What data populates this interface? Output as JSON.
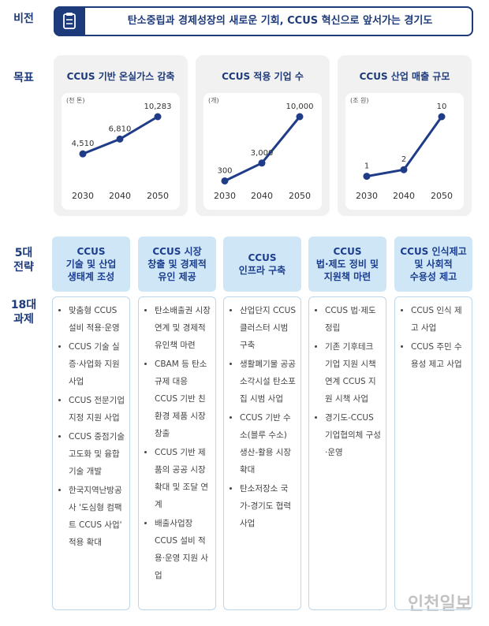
{
  "vision": {
    "label": "비전",
    "text": "탄소중립과 경제성장의 새로운 기회, CCUS 혁신으로 앞서가는 경기도"
  },
  "goals_label": "목표",
  "chart_data": [
    {
      "type": "line",
      "title": "CCUS 기반 온실가스 감축",
      "unit": "(천 톤)",
      "categories": [
        "2030",
        "2040",
        "2050"
      ],
      "values": [
        4510,
        6810,
        10283
      ],
      "value_labels": [
        "4,510",
        "6,810",
        "10,283"
      ],
      "color": "#1f3c88"
    },
    {
      "type": "line",
      "title": "CCUS 적용 기업 수",
      "unit": "(개)",
      "categories": [
        "2030",
        "2040",
        "2050"
      ],
      "values": [
        300,
        3000,
        10000
      ],
      "value_labels": [
        "300",
        "3,000",
        "10,000"
      ],
      "color": "#1f3c88"
    },
    {
      "type": "line",
      "title": "CCUS 산업 매출 규모",
      "unit": "(조 원)",
      "categories": [
        "2030",
        "2040",
        "2050"
      ],
      "values": [
        1,
        2,
        10
      ],
      "color": "#1f3c88"
    }
  ],
  "strategy_label": "5대\n전략",
  "task_label": "18대\n과제",
  "strategies": [
    {
      "title": "CCUS\n기술 및 산업\n생태계 조성",
      "tasks": [
        "맞춤형 CCUS 설비 적용·운영",
        "CCUS 기술 실증·사업화 지원 사업",
        "CCUS 전문기업 지정 지원 사업",
        "CCUS 중점기술 고도화 및 융합기술 개발",
        "한국지역난방공사 '도심형 컴팩트 CCUS 사업' 적용 확대"
      ]
    },
    {
      "title": "CCUS 시장\n창출 및 경제적\n유인 제공",
      "tasks": [
        "탄소배출권 시장 연계 및 경제적 유인책 마련",
        "CBAM 등 탄소규제 대응 CCUS 기반 친환경 제품 시장 창출",
        "CCUS 기반 제품의 공공 시장 확대 및 조달 연계",
        "배출사업장 CCUS 설비 적용·운영 지원 사업"
      ]
    },
    {
      "title": "CCUS\n인프라 구축",
      "tasks": [
        "산업단지 CCUS 클러스터 시범 구축",
        "생활폐기물 공공소각시설 탄소포집 시범 사업",
        "CCUS 기반 수소(블루 수소) 생산-활용 시장 확대",
        "탄소저장소 국가-경기도 협력 사업"
      ]
    },
    {
      "title": "CCUS\n법·제도 정비 및\n지원책 마련",
      "tasks": [
        "CCUS 법·제도 정립",
        "기존 기후테크 기업 지원 시책 연계 CCUS 지원 시책 사업",
        "경기도-CCUS 기업협의체 구성·운영"
      ]
    },
    {
      "title": "CCUS 인식제고\n및 사회적\n수용성 제고",
      "tasks": [
        "CCUS 인식 제고 사업",
        "CCUS 주민 수용성 제고 사업"
      ]
    }
  ],
  "watermark": "인천일보"
}
